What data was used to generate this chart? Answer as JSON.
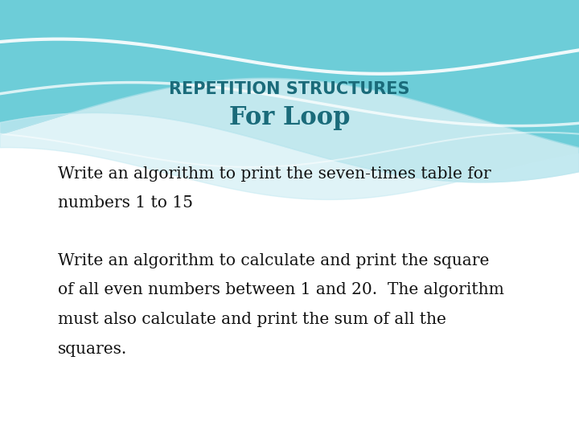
{
  "title_line1": "REPETITION STRUCTURES",
  "title_line2": "For Loop",
  "title_color": "#1a6b7a",
  "title_line1_fontsize": 15,
  "title_line2_fontsize": 22,
  "body_text_1_line1": "Write an algorithm to print the seven-times table for",
  "body_text_1_line2": "numbers 1 to 15",
  "body_text_2_line1": "Write an algorithm to calculate and print the square",
  "body_text_2_line2": "of all even numbers between 1 and 20.  The algorithm",
  "body_text_2_line3": "must also calculate and print the sum of all the",
  "body_text_2_line4": "squares.",
  "body_fontsize": 14.5,
  "body_color": "#111111",
  "bg_color": "#ffffff"
}
